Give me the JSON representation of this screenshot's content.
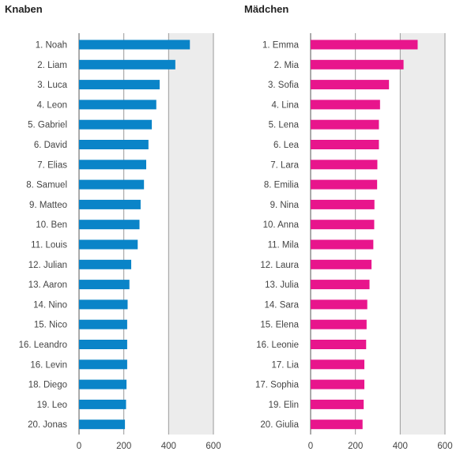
{
  "chart_data": [
    {
      "type": "bar",
      "orientation": "horizontal",
      "title": "Knaben",
      "color": "#0a84c8",
      "xlim": [
        0,
        600
      ],
      "ticks": [
        "0",
        "200",
        "400",
        "600"
      ],
      "categories": [
        "1. Noah",
        "2. Liam",
        "3. Luca",
        "4. Leon",
        "5. Gabriel",
        "6. David",
        "7. Elias",
        "8. Samuel",
        "9. Matteo",
        "10. Ben",
        "11. Louis",
        "12. Julian",
        "13. Aaron",
        "14. Nino",
        "15. Nico",
        "16. Leandro",
        "16. Levin",
        "18. Diego",
        "19. Leo",
        "20. Jonas"
      ],
      "values": [
        495,
        430,
        360,
        345,
        325,
        310,
        300,
        290,
        275,
        270,
        262,
        233,
        225,
        217,
        215,
        215,
        215,
        212,
        210,
        205
      ],
      "grid": true
    },
    {
      "type": "bar",
      "orientation": "horizontal",
      "title": "Mädchen",
      "color": "#e8158c",
      "xlim": [
        0,
        600
      ],
      "ticks": [
        "0",
        "200",
        "400",
        "600"
      ],
      "categories": [
        "1. Emma",
        "2. Mia",
        "3. Sofia",
        "4. Lina",
        "5. Lena",
        "6. Lea",
        "7. Lara",
        "8. Emilia",
        "9. Nina",
        "10. Anna",
        "11. Mila",
        "12. Laura",
        "13. Julia",
        "14. Sara",
        "15. Elena",
        "16. Leonie",
        "17. Lia",
        "17. Sophia",
        "19. Elin",
        "20. Giulia"
      ],
      "values": [
        478,
        415,
        350,
        310,
        305,
        305,
        298,
        297,
        285,
        284,
        280,
        272,
        263,
        253,
        250,
        248,
        240,
        240,
        237,
        232
      ],
      "grid": true
    }
  ]
}
